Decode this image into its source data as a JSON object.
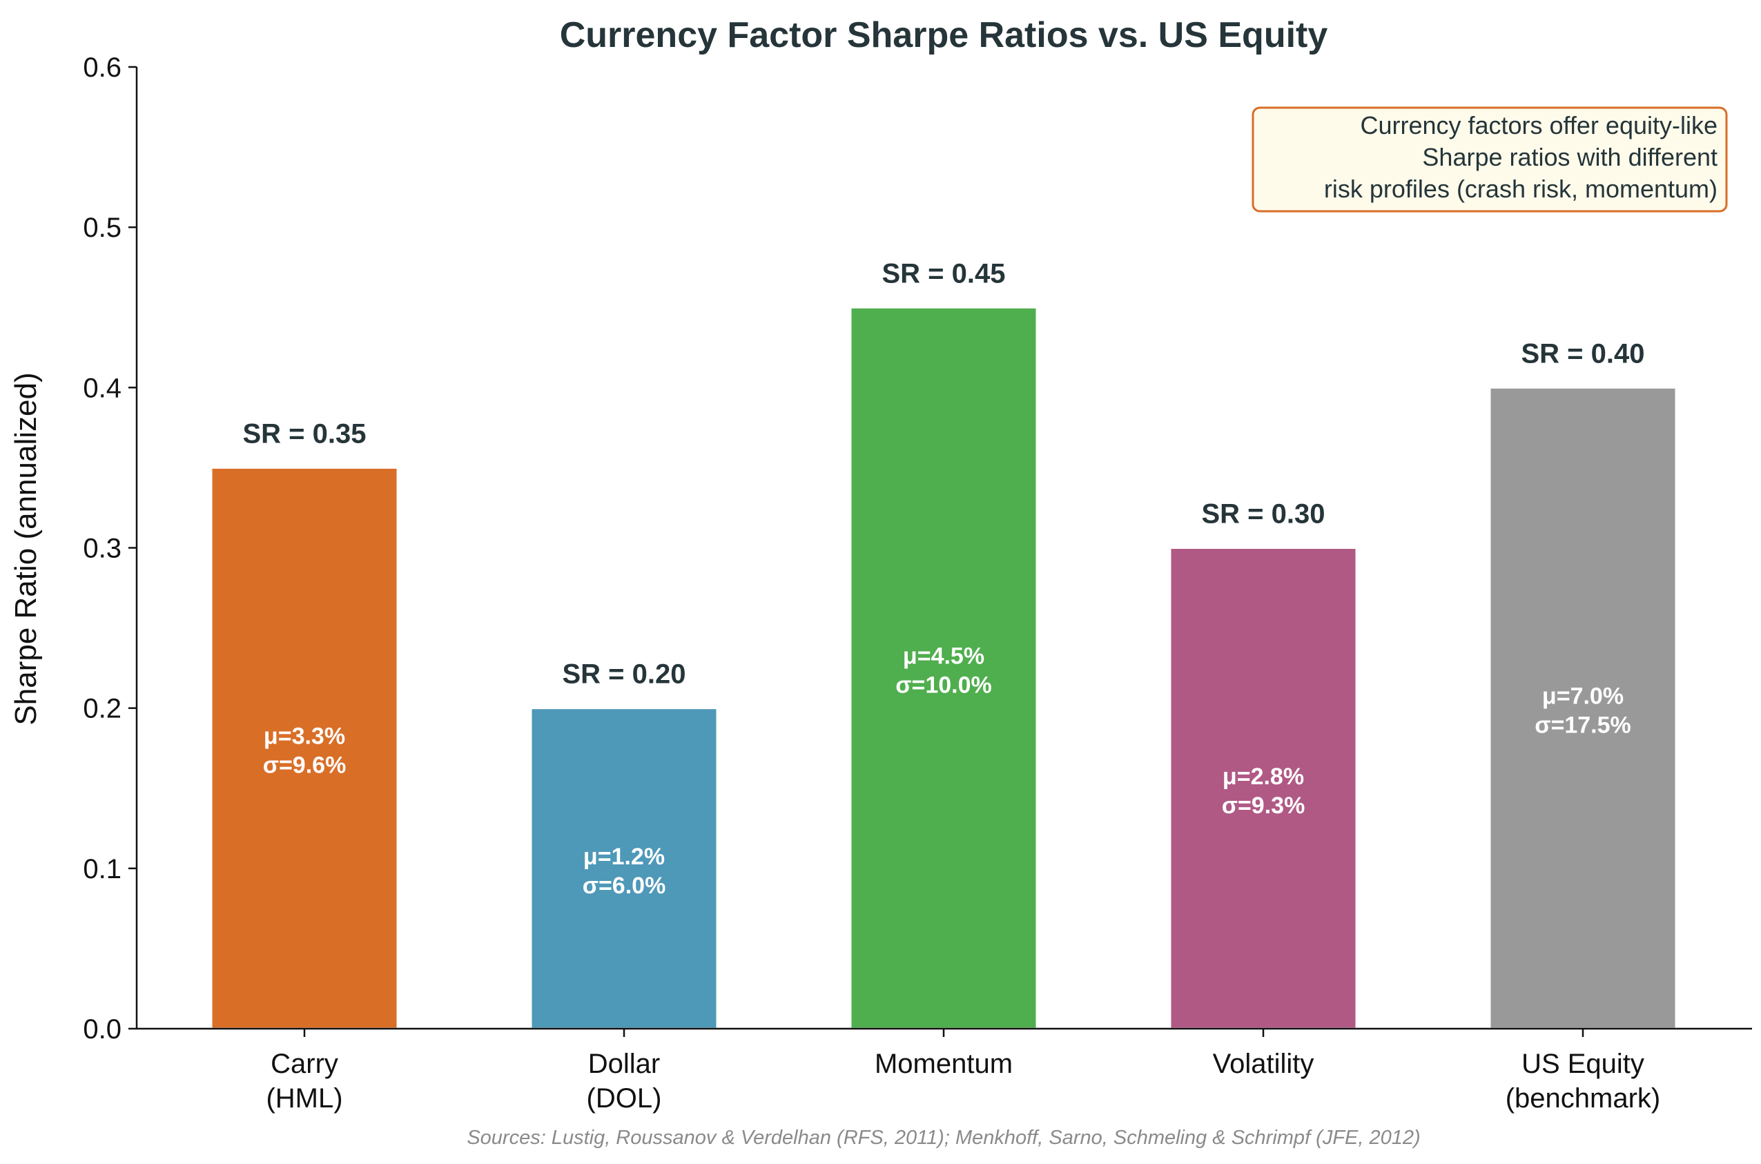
{
  "chart_data": {
    "type": "bar",
    "title": "Currency Factor Sharpe Ratios vs. US Equity",
    "ylabel": "Sharpe Ratio (annualized)",
    "xlabel": "",
    "ylim": [
      0,
      0.6
    ],
    "yticks": [
      "0.0",
      "0.1",
      "0.2",
      "0.3",
      "0.4",
      "0.5",
      "0.6"
    ],
    "grid": false,
    "bars": [
      {
        "category": [
          "Carry",
          "(HML)"
        ],
        "value": 0.35,
        "sr_label": "SR = 0.35",
        "mu": "μ=3.3%",
        "sigma": "σ=9.6%",
        "color": "#d96e27"
      },
      {
        "category": [
          "Dollar",
          "(DOL)"
        ],
        "value": 0.2,
        "sr_label": "SR = 0.20",
        "mu": "μ=1.2%",
        "sigma": "σ=6.0%",
        "color": "#4e98b8"
      },
      {
        "category": [
          "Momentum"
        ],
        "value": 0.45,
        "sr_label": "SR = 0.45",
        "mu": "μ=4.5%",
        "sigma": "σ=10.0%",
        "color": "#4fae4d"
      },
      {
        "category": [
          "Volatility"
        ],
        "value": 0.3,
        "sr_label": "SR = 0.30",
        "mu": "μ=2.8%",
        "sigma": "σ=9.3%",
        "color": "#b05985"
      },
      {
        "category": [
          "US Equity",
          "(benchmark)"
        ],
        "value": 0.4,
        "sr_label": "SR = 0.40",
        "mu": "μ=7.0%",
        "sigma": "σ=17.5%",
        "color": "#999999"
      }
    ],
    "annotation": {
      "lines": [
        "Currency factors offer equity-like",
        "Sharpe ratios with different",
        "risk profiles (crash risk, momentum)"
      ],
      "position": "top-right",
      "border_color": "#d96e27",
      "fill_color": "#fffbeb"
    },
    "source": "Sources: Lustig, Roussanov & Verdelhan (RFS, 2011); Menkhoff, Sarno, Schmeling & Schrimpf (JFE, 2012)"
  }
}
